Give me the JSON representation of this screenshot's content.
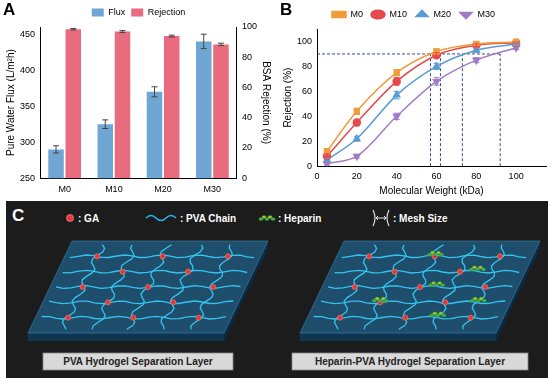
{
  "chart_data": [
    {
      "type": "bar",
      "title": "A",
      "categories": [
        "M0",
        "M10",
        "M20",
        "M30"
      ],
      "series": [
        {
          "name": "Flux",
          "color": "#6fa6d3",
          "values": [
            290,
            325,
            370,
            440
          ],
          "errors": [
            5,
            6,
            7,
            10
          ],
          "axis": "y"
        },
        {
          "name": "Rejection",
          "color": "#e86b7e",
          "values": [
            98.5,
            97,
            94,
            88.5
          ],
          "errors": [
            0.5,
            0.6,
            0.6,
            0.8
          ],
          "axis": "y2"
        }
      ],
      "y_label": "Pure Water Flux (L/m²h)",
      "y2_label": "BSA Rejection (%)",
      "ylim": [
        250,
        460
      ],
      "yticks": [
        250,
        300,
        350,
        400,
        450
      ],
      "y2lim": [
        0,
        100
      ],
      "y2ticks": [
        0,
        20,
        40,
        60,
        80,
        100
      ],
      "grid": false,
      "legend": "top"
    },
    {
      "type": "line",
      "title": "B",
      "x": [
        5,
        20,
        40,
        60,
        80,
        100
      ],
      "series": [
        {
          "name": "M0",
          "color": "#f39a3a",
          "marker": "square",
          "values": [
            12,
            44,
            75,
            92,
            98,
            99.5
          ],
          "errors": [
            2,
            2.5,
            2.5,
            2,
            1,
            0.5
          ]
        },
        {
          "name": "M10",
          "color": "#e5484d",
          "marker": "circle",
          "values": [
            8,
            35,
            68,
            89,
            97,
            99
          ],
          "errors": [
            2,
            2.5,
            3,
            2,
            1,
            0.5
          ]
        },
        {
          "name": "M20",
          "color": "#5b9bd5",
          "marker": "triangle",
          "values": [
            5,
            22,
            57,
            80,
            93,
            98
          ],
          "errors": [
            1.5,
            2,
            3,
            2.5,
            1.5,
            1
          ]
        },
        {
          "name": "M30",
          "color": "#a07cc5",
          "marker": "triangle_down",
          "values": [
            2,
            8,
            40,
            68,
            85,
            95
          ],
          "errors": [
            1,
            1.5,
            2.5,
            3,
            2,
            1.5
          ]
        }
      ],
      "x_label": "Molecular Weight (kDa)",
      "y_label": "Rejection (%)",
      "xlim": [
        0,
        115
      ],
      "xticks": [
        0,
        20,
        40,
        60,
        80,
        100
      ],
      "ylim": [
        0,
        110
      ],
      "yticks": [
        0,
        20,
        40,
        60,
        80,
        100
      ],
      "reference_lines": {
        "y": 90,
        "x": [
          57,
          62,
          73,
          92
        ],
        "line_style": "dashed",
        "color": "#1f3b73"
      },
      "grid": false,
      "legend": "top"
    }
  ],
  "diagram": {
    "title": "C",
    "legend": [
      {
        "symbol": "GA",
        "label": ": GA"
      },
      {
        "symbol": "chain",
        "label": ": PVA Chain"
      },
      {
        "symbol": "heparin",
        "label": ": Heparin"
      },
      {
        "symbol": "mesh",
        "label": ": Mesh Size"
      }
    ],
    "panels": [
      {
        "label": "PVA Hydrogel Separation Layer",
        "heparin": false
      },
      {
        "label": "Heparin-PVA Hydrogel Separation Layer",
        "heparin": true
      }
    ]
  }
}
